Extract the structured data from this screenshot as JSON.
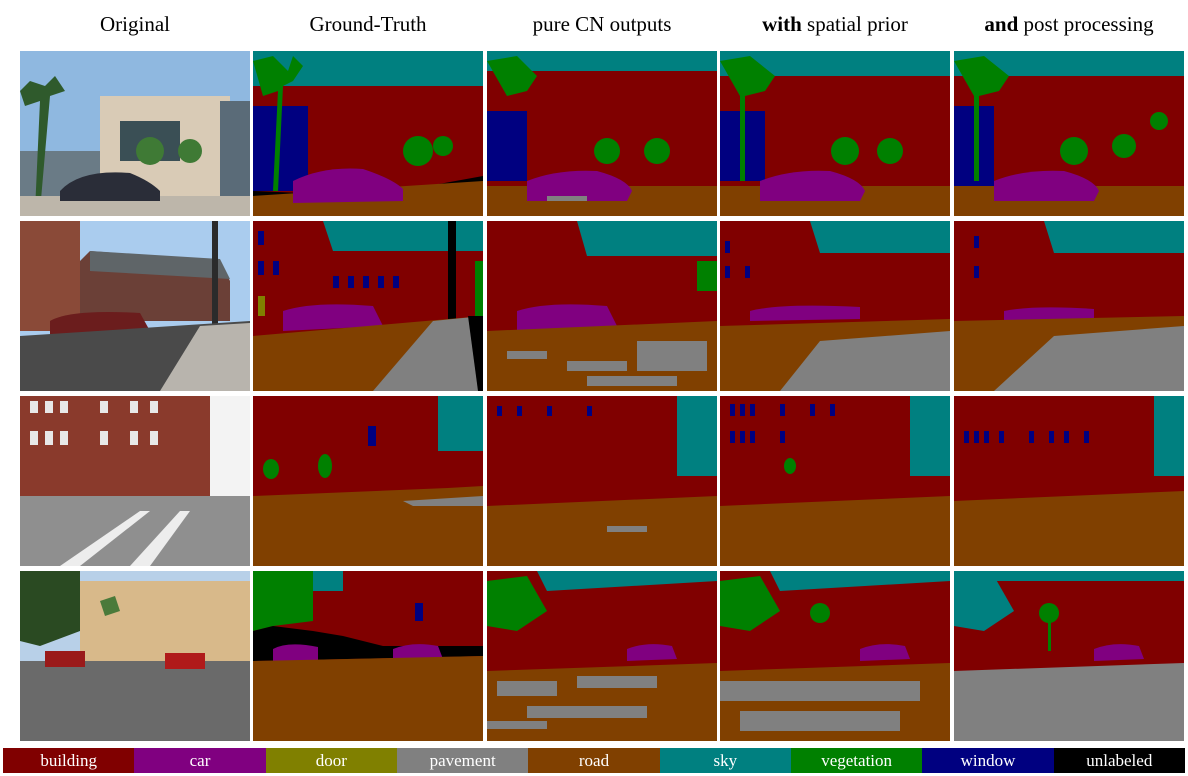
{
  "columns": [
    {
      "label_pre": "",
      "label_bold": "",
      "label": "Original"
    },
    {
      "label_pre": "",
      "label_bold": "",
      "label": "Ground-Truth"
    },
    {
      "label_pre": "",
      "label_bold": "",
      "label": "pure CN outputs"
    },
    {
      "label_pre": "",
      "label_bold": "with",
      "label": " spatial prior"
    },
    {
      "label_pre": "",
      "label_bold": "and",
      "label": " post processing"
    }
  ],
  "legend": [
    {
      "label": "building",
      "color": "#800000"
    },
    {
      "label": "car",
      "color": "#800080"
    },
    {
      "label": "door",
      "color": "#808000"
    },
    {
      "label": "pavement",
      "color": "#808080"
    },
    {
      "label": "road",
      "color": "#804000"
    },
    {
      "label": "sky",
      "color": "#008080"
    },
    {
      "label": "vegetation",
      "color": "#008000"
    },
    {
      "label": "window",
      "color": "#000080"
    },
    {
      "label": "unlabeled",
      "color": "#000000"
    }
  ]
}
